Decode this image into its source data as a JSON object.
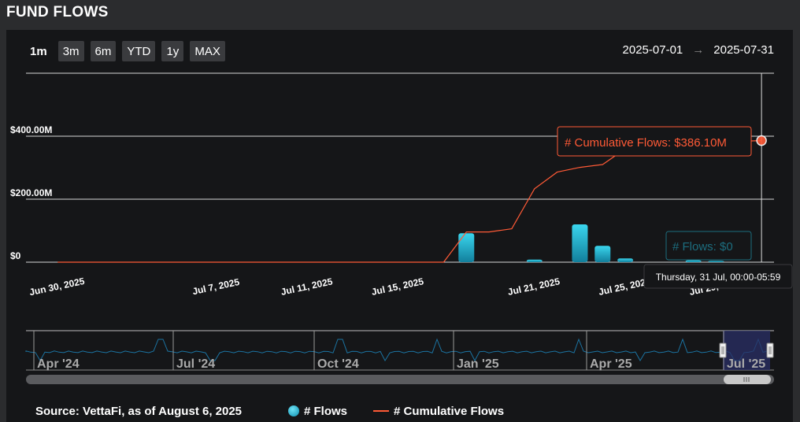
{
  "title": "FUND FLOWS",
  "range_buttons": [
    "1m",
    "3m",
    "6m",
    "YTD",
    "1y",
    "MAX"
  ],
  "active_range": "1m",
  "date_from": "2025-07-01",
  "date_arrow": "→",
  "date_to": "2025-07-31",
  "tooltip": {
    "cumulative": "# Cumulative Flows: $386.10M",
    "flows": "# Flows: $0",
    "date": "Thursday, 31 Jul, 00:00-05:59"
  },
  "colors": {
    "flows": "#23b5d3",
    "cumulative": "#ff5a36",
    "grid": "#d8d8d8",
    "navigator_fill": "#2a2f66"
  },
  "chart_data": {
    "type": "bar+line",
    "y_ticks": [
      "$0",
      "$200.00M",
      "$400.00M"
    ],
    "y_tick_values": [
      0,
      200,
      400
    ],
    "ylim": [
      0,
      600
    ],
    "unit": "$M",
    "x_range": [
      "2025-06-30",
      "2025-07-31"
    ],
    "x_tick_labels": [
      "Jun 30, 2025",
      "Jul 7, 2025",
      "Jul 11, 2025",
      "Jul 15, 2025",
      "Jul 21, 2025",
      "Jul 25, 2025",
      "Jul 29, 2025"
    ],
    "x_tick_dates": [
      "2025-06-30",
      "2025-07-07",
      "2025-07-11",
      "2025-07-15",
      "2025-07-21",
      "2025-07-25",
      "2025-07-29"
    ],
    "series": [
      {
        "name": "# Flows",
        "type": "bar",
        "points": [
          {
            "date": "2025-07-18",
            "value": 92
          },
          {
            "date": "2025-07-21",
            "value": 8
          },
          {
            "date": "2025-07-23",
            "value": 120
          },
          {
            "date": "2025-07-24",
            "value": 52
          },
          {
            "date": "2025-07-25",
            "value": 12
          },
          {
            "date": "2025-07-28",
            "value": 6
          },
          {
            "date": "2025-07-29",
            "value": 4
          },
          {
            "date": "2025-07-31",
            "value": 0
          }
        ]
      },
      {
        "name": "# Cumulative Flows",
        "type": "line",
        "points": [
          {
            "date": "2025-06-30",
            "value": 0
          },
          {
            "date": "2025-07-17",
            "value": 0
          },
          {
            "date": "2025-07-18",
            "value": 96
          },
          {
            "date": "2025-07-19",
            "value": 96
          },
          {
            "date": "2025-07-20",
            "value": 106
          },
          {
            "date": "2025-07-21",
            "value": 233
          },
          {
            "date": "2025-07-22",
            "value": 286
          },
          {
            "date": "2025-07-23",
            "value": 301
          },
          {
            "date": "2025-07-24",
            "value": 310
          },
          {
            "date": "2025-07-25",
            "value": 360
          },
          {
            "date": "2025-07-28",
            "value": 380
          },
          {
            "date": "2025-07-31",
            "value": 386.1
          }
        ]
      }
    ],
    "navigator": {
      "labels": [
        "Apr '24",
        "Jul '24",
        "Oct '24",
        "Jan '25",
        "Apr '25",
        "Jul '25"
      ]
    }
  },
  "legend": {
    "source": "Source: VettaFi, as of August 6, 2025",
    "flows": "# Flows",
    "cumulative": "# Cumulative Flows"
  }
}
